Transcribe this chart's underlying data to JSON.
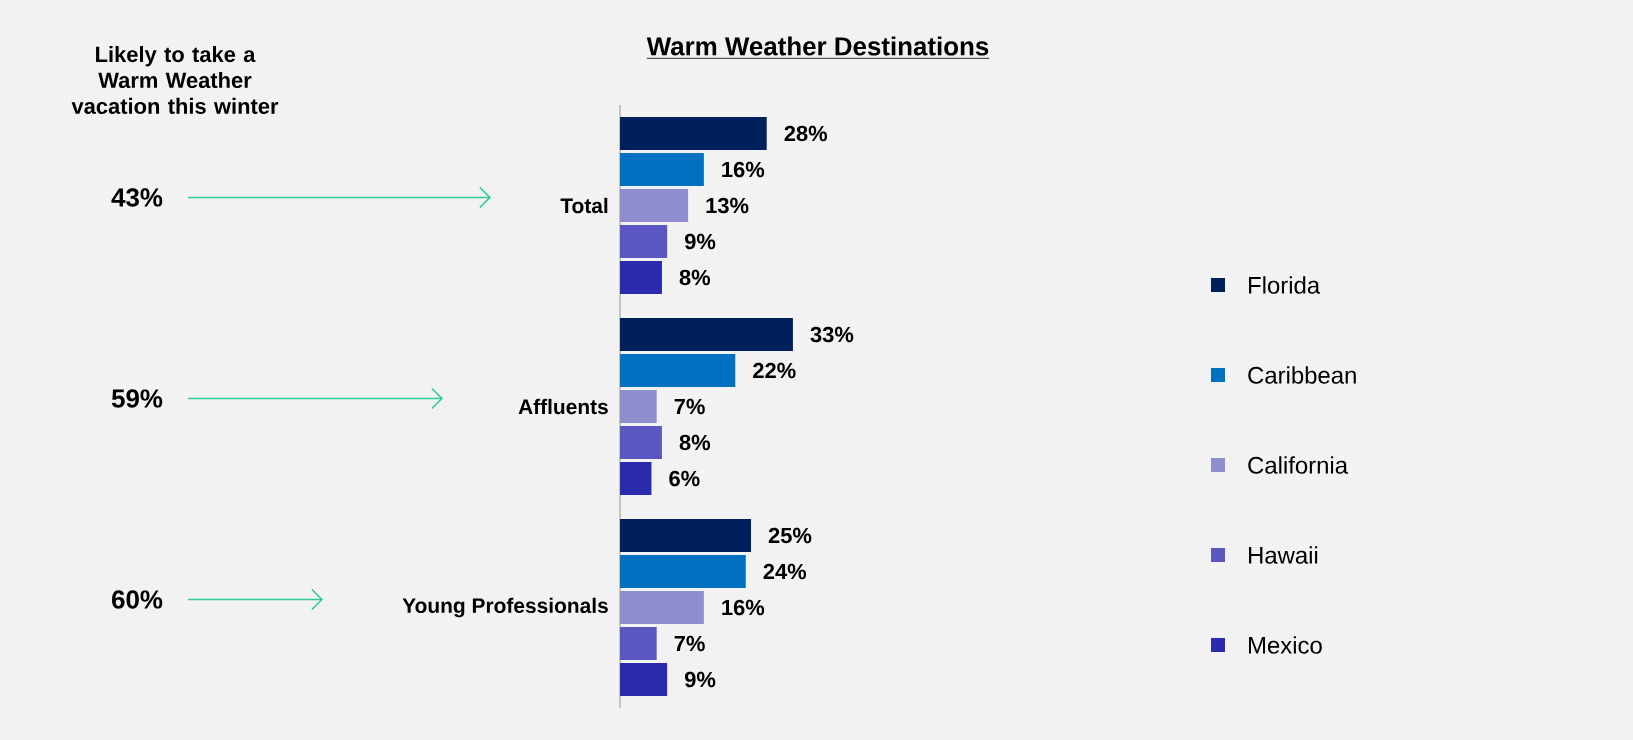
{
  "chart_data": {
    "type": "bar",
    "orientation": "horizontal",
    "title": "Warm Weather Destinations",
    "categories": [
      "Total",
      "Affluents",
      "Young Professionals"
    ],
    "series": [
      {
        "name": "Florida",
        "color": "#00205b",
        "values": [
          28,
          33,
          25
        ],
        "value_labels": [
          "28%",
          "33%",
          "25%"
        ]
      },
      {
        "name": "Caribbean",
        "color": "#0070c0",
        "values": [
          16,
          22,
          24
        ],
        "value_labels": [
          "16%",
          "22%",
          "24%"
        ]
      },
      {
        "name": "California",
        "color": "#8e8ece",
        "values": [
          13,
          7,
          16
        ],
        "value_labels": [
          "13%",
          "7%",
          "16%"
        ]
      },
      {
        "name": "Hawaii",
        "color": "#5b57c2",
        "values": [
          9,
          8,
          7
        ],
        "value_labels": [
          "9%",
          "8%",
          "7%"
        ]
      },
      {
        "name": "Mexico",
        "color": "#2b2bb0",
        "values": [
          8,
          6,
          9
        ],
        "value_labels": [
          "8%",
          "6%",
          "9%"
        ]
      }
    ],
    "legend": "right",
    "tick_labels": "y",
    "annotations": [
      "Likely to take a Warm Weather vacation this winter",
      "43%",
      "59%",
      "60%"
    ]
  }
}
